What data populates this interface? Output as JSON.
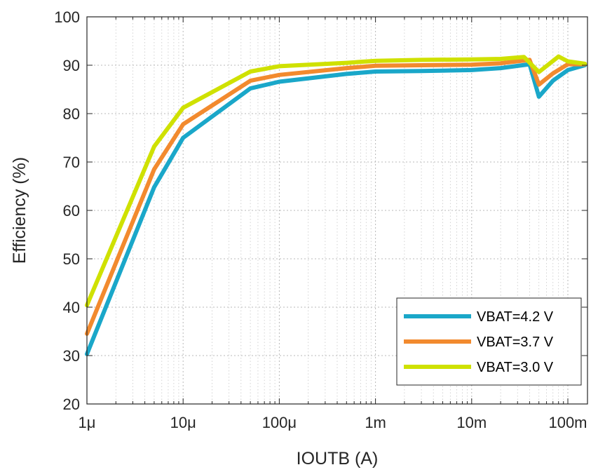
{
  "chart_data": {
    "type": "line",
    "title": "",
    "xlabel": "IOUTB (A)",
    "ylabel": "Efficiency (%)",
    "xscale": "log",
    "xlim": [
      1e-06,
      0.16
    ],
    "ylim": [
      20,
      100
    ],
    "grid": true,
    "legend_position": "bottom-right",
    "x_ticks": [
      {
        "value": 1e-06,
        "label": "1μ"
      },
      {
        "value": 1e-05,
        "label": "10μ"
      },
      {
        "value": 0.0001,
        "label": "100μ"
      },
      {
        "value": 0.001,
        "label": "1m"
      },
      {
        "value": 0.01,
        "label": "10m"
      },
      {
        "value": 0.1,
        "label": "100m"
      }
    ],
    "y_ticks": [
      {
        "value": 20,
        "label": "20"
      },
      {
        "value": 30,
        "label": "30"
      },
      {
        "value": 40,
        "label": "40"
      },
      {
        "value": 50,
        "label": "50"
      },
      {
        "value": 60,
        "label": "60"
      },
      {
        "value": 70,
        "label": "70"
      },
      {
        "value": 80,
        "label": "80"
      },
      {
        "value": 90,
        "label": "90"
      },
      {
        "value": 100,
        "label": "100"
      }
    ],
    "series": [
      {
        "name": "VBAT=4.2 V",
        "color": "#1aa7c9",
        "x": [
          1e-06,
          5e-06,
          1e-05,
          5e-05,
          0.0001,
          0.0005,
          0.001,
          0.003,
          0.01,
          0.02,
          0.04,
          0.05,
          0.07,
          0.1,
          0.15
        ],
        "y": [
          30.3,
          64.8,
          75,
          85.2,
          86.6,
          88.2,
          88.7,
          88.8,
          89,
          89.4,
          90.2,
          83.5,
          86.8,
          89,
          90
        ]
      },
      {
        "name": "VBAT=3.7 V",
        "color": "#f28a2e",
        "x": [
          1e-06,
          5e-06,
          1e-05,
          5e-05,
          0.0001,
          0.0005,
          0.001,
          0.003,
          0.01,
          0.02,
          0.04,
          0.05,
          0.07,
          0.1,
          0.15
        ],
        "y": [
          34.5,
          68.5,
          77.8,
          86.8,
          88,
          89.4,
          89.9,
          90,
          90.1,
          90.4,
          91.1,
          86,
          88.3,
          90.2,
          90.2
        ]
      },
      {
        "name": "VBAT=3.0 V",
        "color": "#cfe100",
        "x": [
          1e-06,
          5e-06,
          1e-05,
          5e-05,
          0.0001,
          0.0005,
          0.001,
          0.003,
          0.01,
          0.02,
          0.035,
          0.05,
          0.08,
          0.1,
          0.15
        ],
        "y": [
          40.4,
          73.2,
          81.2,
          88.7,
          89.8,
          90.5,
          90.9,
          91.1,
          91.2,
          91.3,
          91.7,
          88.6,
          91.8,
          90.8,
          90.3
        ]
      }
    ]
  }
}
